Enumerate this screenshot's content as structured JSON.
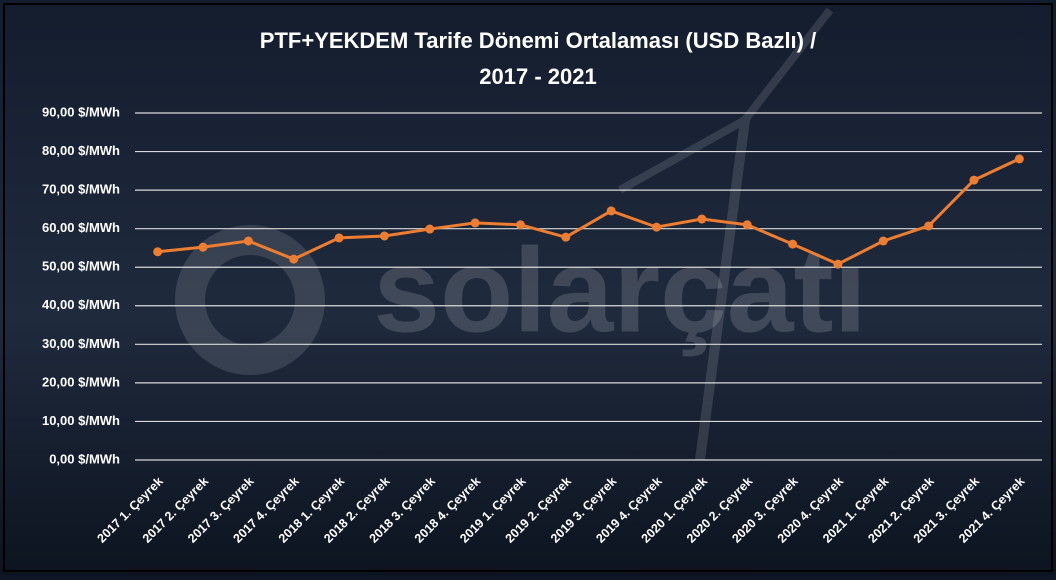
{
  "chart_data": {
    "type": "line",
    "title": "PTF+YEKDEM Tarife Dönemi Ortalaması (USD Bazlı) /",
    "subtitle": "2017 - 2021",
    "watermark": "solarçatı",
    "categories": [
      "2017 1. Çeyrek",
      "2017 2. Çeyrek",
      "2017 3. Çeyrek",
      "2017 4. Çeyrek",
      "2018 1. Çeyrek",
      "2018 2. Çeyrek",
      "2018 3. Çeyrek",
      "2018 4. Çeyrek",
      "2019 1. Çeyrek",
      "2019 2. Çeyrek",
      "2019 3. Çeyrek",
      "2019 4. Çeyrek",
      "2020 1. Çeyrek",
      "2020 2. Çeyrek",
      "2020 3. Çeyrek",
      "2020 4. Çeyrek",
      "2021 1. Çeyrek",
      "2021 2. Çeyrek",
      "2021 3. Çeyrek",
      "2021 4. Çeyrek"
    ],
    "values": [
      54.0,
      55.2,
      56.8,
      52.1,
      57.6,
      58.1,
      59.9,
      61.5,
      61.0,
      57.8,
      64.6,
      60.4,
      62.5,
      61.0,
      56.0,
      50.8,
      56.8,
      60.7,
      72.6,
      78.1
    ],
    "color": "#ed7d31",
    "ylim": [
      0,
      90
    ],
    "yticks": [
      {
        "value": 0,
        "label": "0,00 $/MWh"
      },
      {
        "value": 10,
        "label": "10,00 $/MWh"
      },
      {
        "value": 20,
        "label": "20,00 $/MWh"
      },
      {
        "value": 30,
        "label": "30,00 $/MWh"
      },
      {
        "value": 40,
        "label": "40,00 $/MWh"
      },
      {
        "value": 50,
        "label": "50,00 $/MWh"
      },
      {
        "value": 60,
        "label": "60,00 $/MWh"
      },
      {
        "value": 70,
        "label": "70,00 $/MWh"
      },
      {
        "value": 80,
        "label": "80,00 $/MWh"
      },
      {
        "value": 90,
        "label": "90,00 $/MWh"
      }
    ],
    "grid": true
  }
}
